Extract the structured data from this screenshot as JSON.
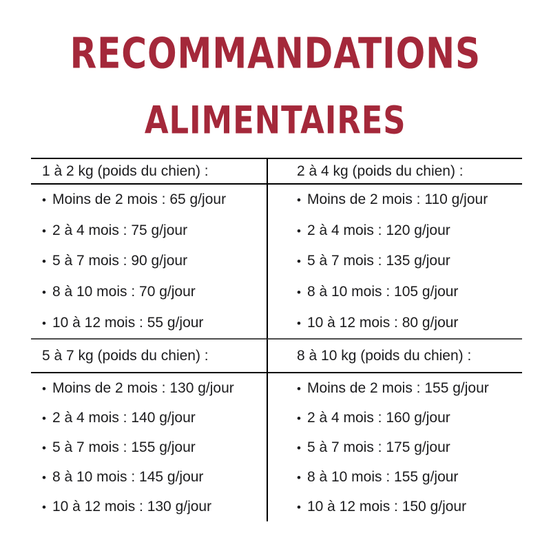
{
  "title": {
    "line1": "RECOMMANDATIONS",
    "line2": "ALIMENTAIRES",
    "color": "#a4283a"
  },
  "table": {
    "bullet": "•",
    "text_color": "#1c1c1e",
    "cells": [
      {
        "header": "1 à 2 kg (poids du chien) :",
        "items": [
          "Moins de 2 mois : 65 g/jour",
          "2 à 4 mois : 75 g/jour",
          "5 à 7 mois : 90 g/jour",
          "8 à 10 mois : 70 g/jour",
          "10 à 12 mois : 55 g/jour"
        ]
      },
      {
        "header": "2 à 4 kg (poids du chien) :",
        "items": [
          "Moins de 2 mois : 110 g/jour",
          "2 à 4 mois : 120 g/jour",
          "5 à 7 mois : 135 g/jour",
          "8 à 10 mois : 105 g/jour",
          "10 à 12 mois : 80 g/jour"
        ]
      },
      {
        "header": "5 à 7 kg (poids du chien) :",
        "items": [
          "Moins de 2 mois : 130 g/jour",
          "2 à 4 mois : 140 g/jour",
          "5 à 7 mois : 155 g/jour",
          "8 à 10 mois : 145 g/jour",
          "10 à 12 mois : 130 g/jour"
        ]
      },
      {
        "header": "8 à 10 kg (poids du chien) :",
        "items": [
          "Moins de 2 mois : 155 g/jour",
          "2 à 4 mois : 160 g/jour",
          "5 à 7 mois : 175 g/jour",
          "8 à 10 mois : 155 g/jour",
          "10 à 12 mois : 150 g/jour"
        ]
      }
    ]
  }
}
